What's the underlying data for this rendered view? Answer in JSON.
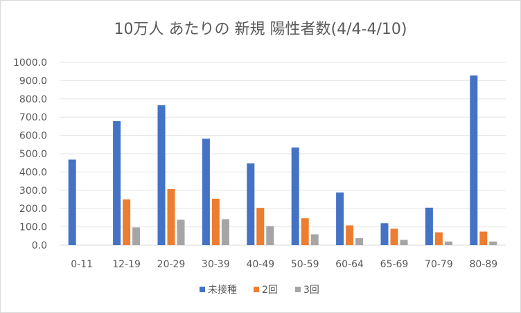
{
  "chart_data": {
    "type": "bar",
    "title": "10万人 あたりの 新規 陽性者数(4/4-4/10)",
    "xlabel": "",
    "ylabel": "",
    "categories": [
      "0-11",
      "12-19",
      "20-29",
      "30-39",
      "40-49",
      "50-59",
      "60-64",
      "65-69",
      "70-79",
      "80-89"
    ],
    "series": [
      {
        "name": "未接種",
        "color": "#4472c4",
        "values": [
          468,
          678,
          765,
          582,
          447,
          534,
          288,
          120,
          205,
          928
        ]
      },
      {
        "name": "2回",
        "color": "#ed7d31",
        "values": [
          0,
          250,
          307,
          254,
          204,
          147,
          108,
          90,
          70,
          74
        ]
      },
      {
        "name": "3回",
        "color": "#a5a5a5",
        "values": [
          0,
          97,
          139,
          142,
          104,
          59,
          38,
          29,
          20,
          20
        ]
      }
    ],
    "ylim": [
      0,
      1000
    ],
    "yticks": [
      "0.0",
      "100.0",
      "200.0",
      "300.0",
      "400.0",
      "500.0",
      "600.0",
      "700.0",
      "800.0",
      "900.0",
      "1000.0"
    ],
    "grid": true,
    "legend_position": "bottom"
  }
}
